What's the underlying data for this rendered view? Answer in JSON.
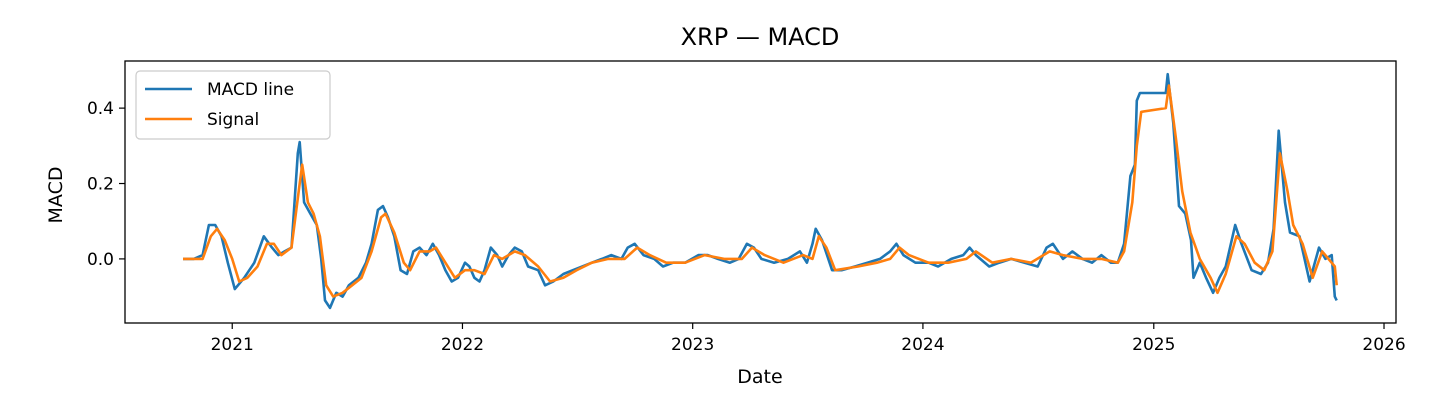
{
  "chart_data": {
    "type": "line",
    "title": "XRP — MACD",
    "xlabel": "Date",
    "ylabel": "MACD",
    "xlim": [
      "2020-07-15",
      "2026-01-20"
    ],
    "ylim": [
      -0.17,
      0.525
    ],
    "x_ticks": [
      "2021",
      "2022",
      "2023",
      "2024",
      "2025",
      "2026"
    ],
    "y_ticks": [
      "0.0",
      "0.2",
      "0.4"
    ],
    "y_tick_values": [
      0.0,
      0.2,
      0.4
    ],
    "grid": false,
    "legend": "upper left",
    "series": [
      {
        "name": "MACD line",
        "color": "#1f77b4",
        "points": [
          [
            "2020-10-15",
            0.0
          ],
          [
            "2020-11-01",
            0.0
          ],
          [
            "2020-11-15",
            0.01
          ],
          [
            "2020-11-25",
            0.09
          ],
          [
            "2020-12-05",
            0.09
          ],
          [
            "2020-12-15",
            0.06
          ],
          [
            "2020-12-25",
            -0.01
          ],
          [
            "2021-01-05",
            -0.08
          ],
          [
            "2021-01-20",
            -0.05
          ],
          [
            "2021-02-05",
            -0.01
          ],
          [
            "2021-02-20",
            0.06
          ],
          [
            "2021-03-05",
            0.03
          ],
          [
            "2021-03-15",
            0.01
          ],
          [
            "2021-03-25",
            0.02
          ],
          [
            "2021-04-05",
            0.03
          ],
          [
            "2021-04-15",
            0.28
          ],
          [
            "2021-04-18",
            0.31
          ],
          [
            "2021-04-25",
            0.15
          ],
          [
            "2021-05-05",
            0.12
          ],
          [
            "2021-05-15",
            0.09
          ],
          [
            "2021-05-22",
            0.0
          ],
          [
            "2021-05-28",
            -0.11
          ],
          [
            "2021-06-05",
            -0.13
          ],
          [
            "2021-06-15",
            -0.09
          ],
          [
            "2021-06-25",
            -0.1
          ],
          [
            "2021-07-05",
            -0.07
          ],
          [
            "2021-07-20",
            -0.05
          ],
          [
            "2021-08-01",
            -0.01
          ],
          [
            "2021-08-10",
            0.04
          ],
          [
            "2021-08-20",
            0.13
          ],
          [
            "2021-08-28",
            0.14
          ],
          [
            "2021-09-05",
            0.11
          ],
          [
            "2021-09-15",
            0.06
          ],
          [
            "2021-09-25",
            -0.03
          ],
          [
            "2021-10-05",
            -0.04
          ],
          [
            "2021-10-15",
            0.02
          ],
          [
            "2021-10-25",
            0.03
          ],
          [
            "2021-11-05",
            0.01
          ],
          [
            "2021-11-15",
            0.04
          ],
          [
            "2021-11-25",
            0.01
          ],
          [
            "2021-12-05",
            -0.03
          ],
          [
            "2021-12-15",
            -0.06
          ],
          [
            "2021-12-25",
            -0.05
          ],
          [
            "2022-01-05",
            -0.01
          ],
          [
            "2022-01-12",
            -0.02
          ],
          [
            "2022-01-20",
            -0.05
          ],
          [
            "2022-01-28",
            -0.06
          ],
          [
            "2022-02-05",
            -0.03
          ],
          [
            "2022-02-15",
            0.03
          ],
          [
            "2022-02-25",
            0.01
          ],
          [
            "2022-03-05",
            -0.02
          ],
          [
            "2022-03-15",
            0.01
          ],
          [
            "2022-03-25",
            0.03
          ],
          [
            "2022-04-05",
            0.02
          ],
          [
            "2022-04-15",
            -0.02
          ],
          [
            "2022-05-01",
            -0.03
          ],
          [
            "2022-05-12",
            -0.07
          ],
          [
            "2022-05-25",
            -0.06
          ],
          [
            "2022-06-10",
            -0.04
          ],
          [
            "2022-06-25",
            -0.03
          ],
          [
            "2022-07-10",
            -0.02
          ],
          [
            "2022-07-25",
            -0.01
          ],
          [
            "2022-08-10",
            0.0
          ],
          [
            "2022-08-25",
            0.01
          ],
          [
            "2022-09-10",
            0.0
          ],
          [
            "2022-09-20",
            0.03
          ],
          [
            "2022-10-01",
            0.04
          ],
          [
            "2022-10-15",
            0.01
          ],
          [
            "2022-11-01",
            0.0
          ],
          [
            "2022-11-15",
            -0.02
          ],
          [
            "2022-12-01",
            -0.01
          ],
          [
            "2022-12-20",
            -0.01
          ],
          [
            "2023-01-10",
            0.01
          ],
          [
            "2023-01-25",
            0.01
          ],
          [
            "2023-02-10",
            0.0
          ],
          [
            "2023-03-01",
            -0.01
          ],
          [
            "2023-03-15",
            0.0
          ],
          [
            "2023-03-28",
            0.04
          ],
          [
            "2023-04-08",
            0.03
          ],
          [
            "2023-04-20",
            0.0
          ],
          [
            "2023-05-10",
            -0.01
          ],
          [
            "2023-06-01",
            0.0
          ],
          [
            "2023-06-20",
            0.02
          ],
          [
            "2023-07-01",
            -0.01
          ],
          [
            "2023-07-10",
            0.04
          ],
          [
            "2023-07-15",
            0.08
          ],
          [
            "2023-07-25",
            0.05
          ],
          [
            "2023-08-10",
            -0.03
          ],
          [
            "2023-08-25",
            -0.03
          ],
          [
            "2023-09-15",
            -0.02
          ],
          [
            "2023-10-05",
            -0.01
          ],
          [
            "2023-10-25",
            0.0
          ],
          [
            "2023-11-10",
            0.02
          ],
          [
            "2023-11-20",
            0.04
          ],
          [
            "2023-12-01",
            0.01
          ],
          [
            "2023-12-20",
            -0.01
          ],
          [
            "2024-01-10",
            -0.01
          ],
          [
            "2024-01-25",
            -0.02
          ],
          [
            "2024-02-15",
            0.0
          ],
          [
            "2024-03-05",
            0.01
          ],
          [
            "2024-03-15",
            0.03
          ],
          [
            "2024-03-25",
            0.01
          ],
          [
            "2024-04-15",
            -0.02
          ],
          [
            "2024-05-01",
            -0.01
          ],
          [
            "2024-05-20",
            0.0
          ],
          [
            "2024-06-10",
            -0.01
          ],
          [
            "2024-07-01",
            -0.02
          ],
          [
            "2024-07-15",
            0.03
          ],
          [
            "2024-07-25",
            0.04
          ],
          [
            "2024-08-10",
            0.0
          ],
          [
            "2024-08-25",
            0.02
          ],
          [
            "2024-09-10",
            0.0
          ],
          [
            "2024-09-25",
            -0.01
          ],
          [
            "2024-10-10",
            0.01
          ],
          [
            "2024-10-25",
            -0.01
          ],
          [
            "2024-11-05",
            -0.01
          ],
          [
            "2024-11-15",
            0.04
          ],
          [
            "2024-11-25",
            0.22
          ],
          [
            "2024-12-02",
            0.25
          ],
          [
            "2024-12-05",
            0.42
          ],
          [
            "2024-12-10",
            0.44
          ],
          [
            "2025-01-20",
            0.44
          ],
          [
            "2025-01-23",
            0.49
          ],
          [
            "2025-02-01",
            0.36
          ],
          [
            "2025-02-10",
            0.14
          ],
          [
            "2025-02-20",
            0.12
          ],
          [
            "2025-03-01",
            0.05
          ],
          [
            "2025-03-05",
            -0.05
          ],
          [
            "2025-03-15",
            -0.01
          ],
          [
            "2025-03-25",
            -0.05
          ],
          [
            "2025-04-05",
            -0.09
          ],
          [
            "2025-04-15",
            -0.05
          ],
          [
            "2025-04-25",
            -0.02
          ],
          [
            "2025-05-10",
            0.09
          ],
          [
            "2025-05-20",
            0.04
          ],
          [
            "2025-06-05",
            -0.03
          ],
          [
            "2025-06-20",
            -0.04
          ],
          [
            "2025-07-01",
            -0.01
          ],
          [
            "2025-07-10",
            0.08
          ],
          [
            "2025-07-18",
            0.34
          ],
          [
            "2025-07-28",
            0.15
          ],
          [
            "2025-08-05",
            0.07
          ],
          [
            "2025-08-20",
            0.06
          ],
          [
            "2025-09-05",
            -0.06
          ],
          [
            "2025-09-20",
            0.03
          ],
          [
            "2025-09-30",
            0.0
          ],
          [
            "2025-10-10",
            0.01
          ],
          [
            "2025-10-15",
            -0.1
          ],
          [
            "2025-10-18",
            -0.11
          ]
        ]
      },
      {
        "name": "Signal",
        "color": "#ff7f0e",
        "points": [
          [
            "2020-10-15",
            0.0
          ],
          [
            "2020-11-01",
            0.0
          ],
          [
            "2020-11-15",
            0.0
          ],
          [
            "2020-11-28",
            0.06
          ],
          [
            "2020-12-08",
            0.08
          ],
          [
            "2020-12-20",
            0.05
          ],
          [
            "2021-01-01",
            0.0
          ],
          [
            "2021-01-12",
            -0.06
          ],
          [
            "2021-01-25",
            -0.05
          ],
          [
            "2021-02-10",
            -0.02
          ],
          [
            "2021-02-25",
            0.04
          ],
          [
            "2021-03-08",
            0.04
          ],
          [
            "2021-03-20",
            0.01
          ],
          [
            "2021-04-05",
            0.03
          ],
          [
            "2021-04-18",
            0.2
          ],
          [
            "2021-04-22",
            0.25
          ],
          [
            "2021-05-01",
            0.15
          ],
          [
            "2021-05-10",
            0.12
          ],
          [
            "2021-05-20",
            0.06
          ],
          [
            "2021-05-30",
            -0.07
          ],
          [
            "2021-06-10",
            -0.1
          ],
          [
            "2021-06-25",
            -0.09
          ],
          [
            "2021-07-10",
            -0.07
          ],
          [
            "2021-07-25",
            -0.05
          ],
          [
            "2021-08-10",
            0.02
          ],
          [
            "2021-08-25",
            0.11
          ],
          [
            "2021-09-01",
            0.12
          ],
          [
            "2021-09-15",
            0.07
          ],
          [
            "2021-09-30",
            -0.01
          ],
          [
            "2021-10-10",
            -0.03
          ],
          [
            "2021-10-25",
            0.02
          ],
          [
            "2021-11-10",
            0.02
          ],
          [
            "2021-11-20",
            0.03
          ],
          [
            "2021-12-05",
            -0.01
          ],
          [
            "2021-12-20",
            -0.05
          ],
          [
            "2022-01-05",
            -0.03
          ],
          [
            "2022-01-20",
            -0.03
          ],
          [
            "2022-02-05",
            -0.04
          ],
          [
            "2022-02-20",
            0.01
          ],
          [
            "2022-03-05",
            0.0
          ],
          [
            "2022-03-25",
            0.02
          ],
          [
            "2022-04-10",
            0.01
          ],
          [
            "2022-05-01",
            -0.02
          ],
          [
            "2022-05-20",
            -0.06
          ],
          [
            "2022-06-10",
            -0.05
          ],
          [
            "2022-07-01",
            -0.03
          ],
          [
            "2022-07-25",
            -0.01
          ],
          [
            "2022-08-20",
            0.0
          ],
          [
            "2022-09-15",
            0.0
          ],
          [
            "2022-10-05",
            0.03
          ],
          [
            "2022-10-25",
            0.01
          ],
          [
            "2022-11-20",
            -0.01
          ],
          [
            "2022-12-20",
            -0.01
          ],
          [
            "2023-01-20",
            0.01
          ],
          [
            "2023-02-20",
            0.0
          ],
          [
            "2023-03-20",
            0.0
          ],
          [
            "2023-04-05",
            0.03
          ],
          [
            "2023-04-25",
            0.01
          ],
          [
            "2023-05-25",
            -0.01
          ],
          [
            "2023-06-25",
            0.01
          ],
          [
            "2023-07-10",
            0.0
          ],
          [
            "2023-07-20",
            0.06
          ],
          [
            "2023-08-01",
            0.03
          ],
          [
            "2023-08-15",
            -0.03
          ],
          [
            "2023-09-20",
            -0.02
          ],
          [
            "2023-10-20",
            -0.01
          ],
          [
            "2023-11-10",
            0.0
          ],
          [
            "2023-11-25",
            0.03
          ],
          [
            "2023-12-10",
            0.01
          ],
          [
            "2024-01-10",
            -0.01
          ],
          [
            "2024-02-10",
            -0.01
          ],
          [
            "2024-03-10",
            0.0
          ],
          [
            "2024-03-25",
            0.02
          ],
          [
            "2024-04-20",
            -0.01
          ],
          [
            "2024-05-20",
            0.0
          ],
          [
            "2024-06-20",
            -0.01
          ],
          [
            "2024-07-20",
            0.02
          ],
          [
            "2024-08-10",
            0.01
          ],
          [
            "2024-09-10",
            0.0
          ],
          [
            "2024-10-10",
            0.0
          ],
          [
            "2024-11-05",
            -0.01
          ],
          [
            "2024-11-15",
            0.02
          ],
          [
            "2024-11-28",
            0.15
          ],
          [
            "2024-12-05",
            0.3
          ],
          [
            "2024-12-12",
            0.39
          ],
          [
            "2025-01-20",
            0.4
          ],
          [
            "2025-01-25",
            0.46
          ],
          [
            "2025-02-05",
            0.32
          ],
          [
            "2025-02-15",
            0.18
          ],
          [
            "2025-02-28",
            0.07
          ],
          [
            "2025-03-15",
            0.0
          ],
          [
            "2025-04-01",
            -0.05
          ],
          [
            "2025-04-12",
            -0.09
          ],
          [
            "2025-04-25",
            -0.04
          ],
          [
            "2025-05-12",
            0.06
          ],
          [
            "2025-05-25",
            0.04
          ],
          [
            "2025-06-10",
            -0.01
          ],
          [
            "2025-06-25",
            -0.03
          ],
          [
            "2025-07-08",
            0.02
          ],
          [
            "2025-07-20",
            0.28
          ],
          [
            "2025-08-01",
            0.18
          ],
          [
            "2025-08-10",
            0.09
          ],
          [
            "2025-08-25",
            0.04
          ],
          [
            "2025-09-10",
            -0.05
          ],
          [
            "2025-09-25",
            0.02
          ],
          [
            "2025-10-05",
            0.0
          ],
          [
            "2025-10-15",
            -0.02
          ],
          [
            "2025-10-18",
            -0.07
          ]
        ]
      }
    ]
  }
}
